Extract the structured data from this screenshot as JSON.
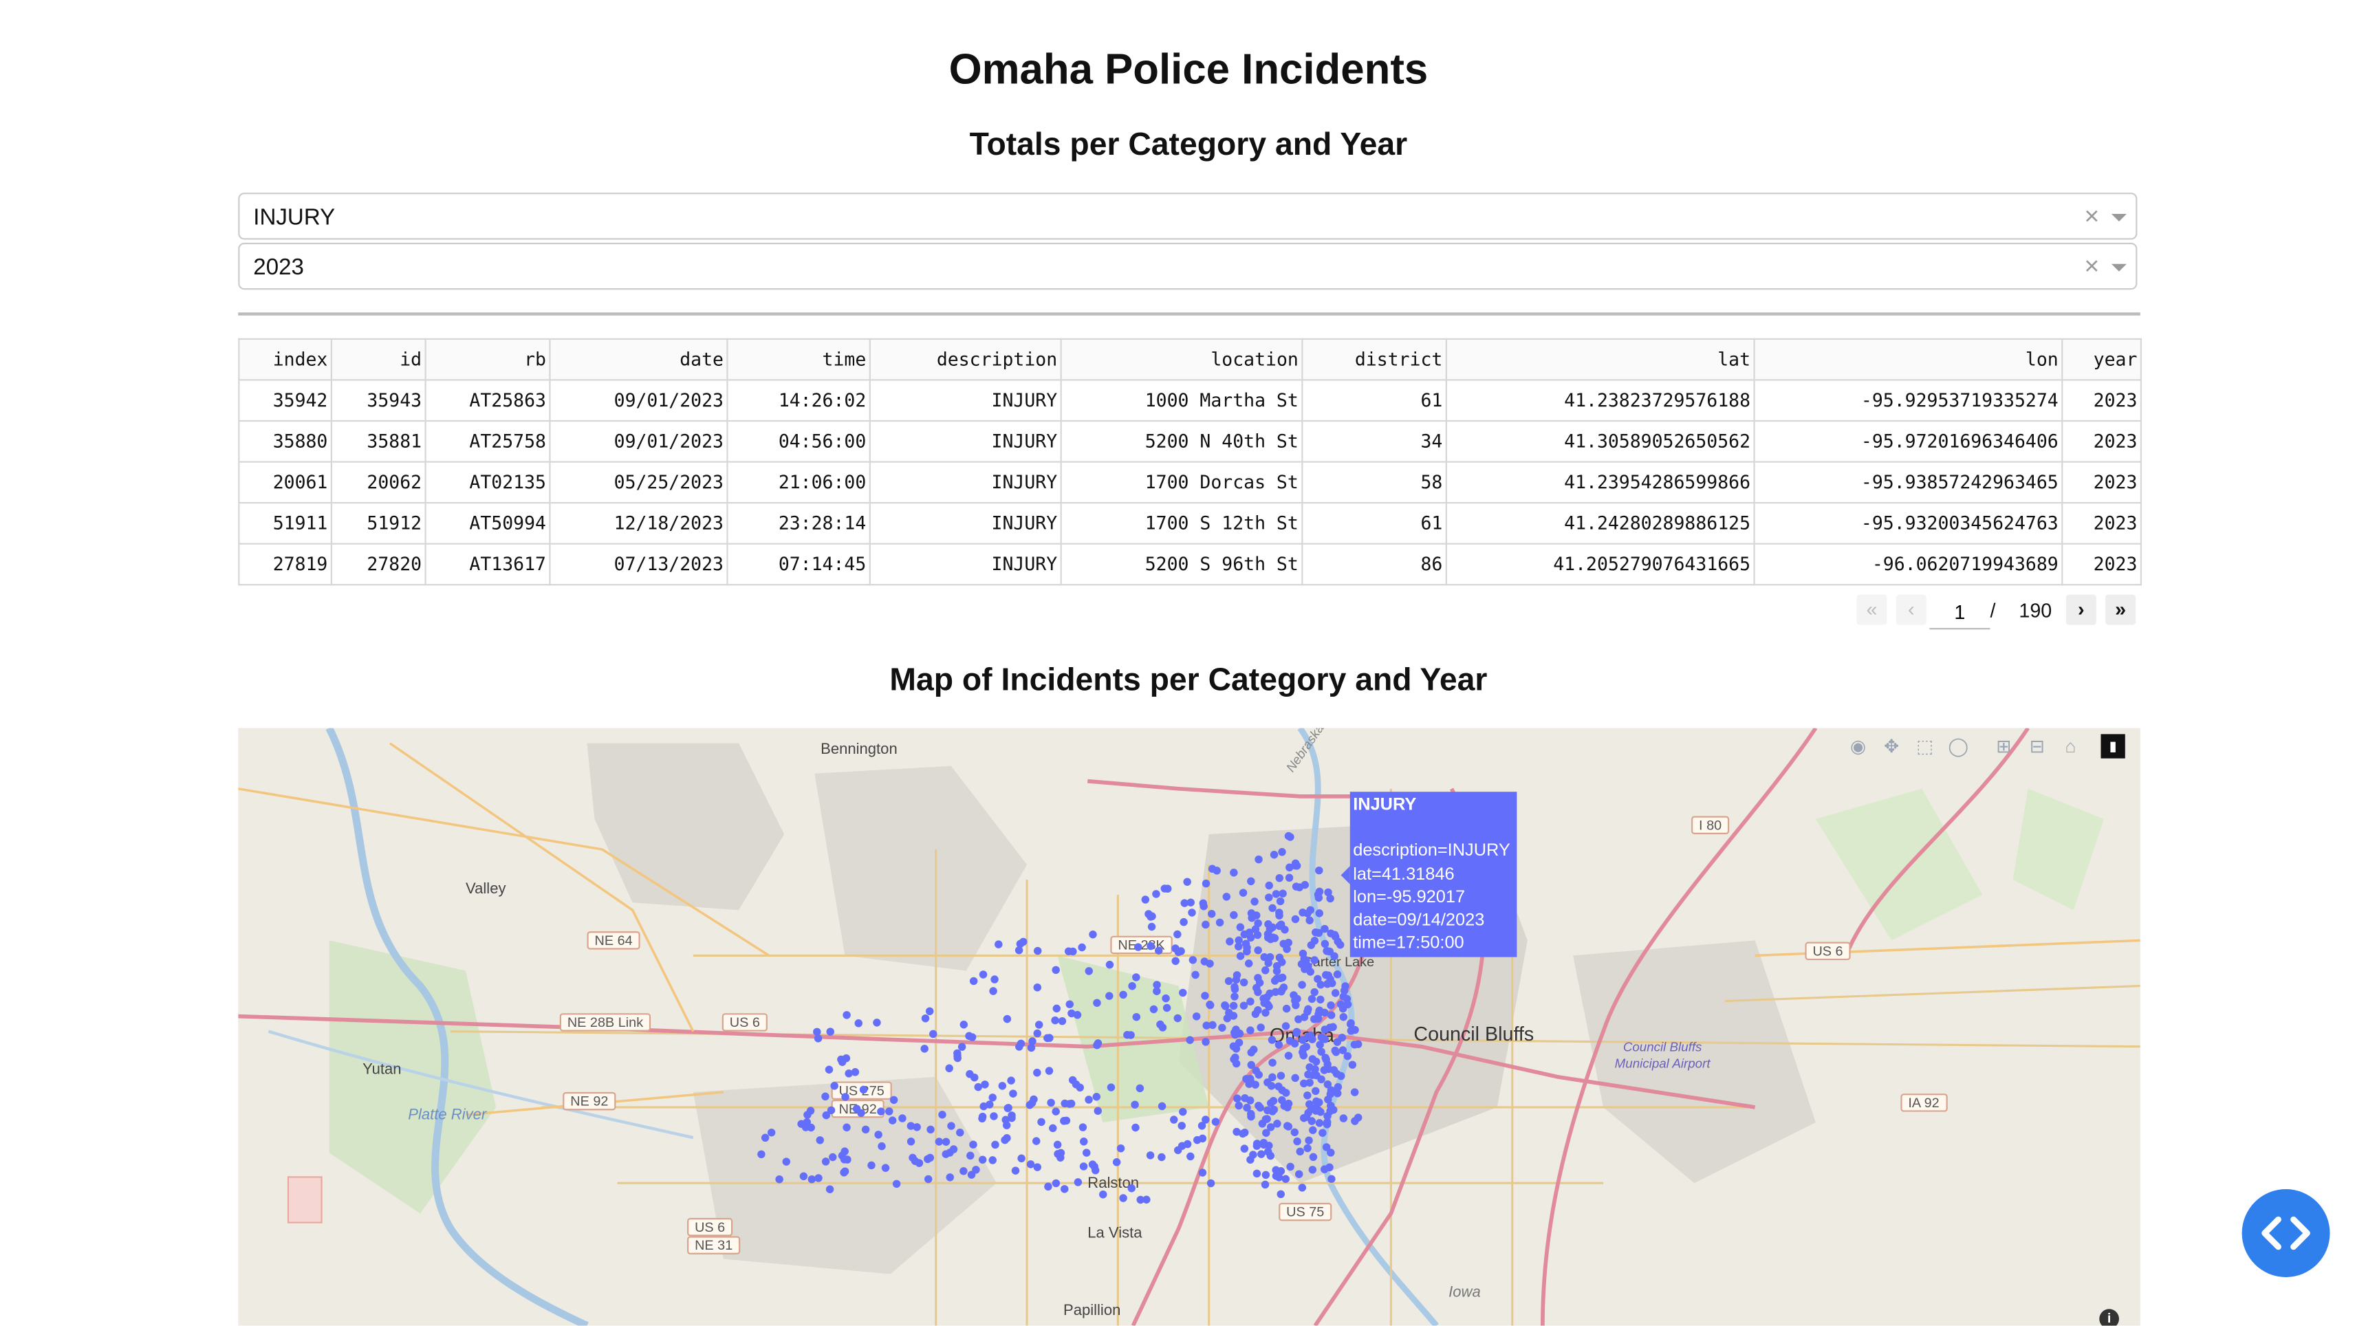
{
  "header": {
    "title": "Omaha Police Incidents",
    "subtitle": "Totals per Category and Year",
    "map_title": "Map of Incidents per Category and Year"
  },
  "filters": {
    "category": "INJURY",
    "year": "2023",
    "clear_symbol": "×"
  },
  "table": {
    "columns": [
      "index",
      "id",
      "rb",
      "date",
      "time",
      "description",
      "location",
      "district",
      "lat",
      "lon",
      "year"
    ],
    "rows": [
      [
        "35942",
        "35943",
        "AT25863",
        "09/01/2023",
        "14:26:02",
        "INJURY",
        "1000 Martha St",
        "61",
        "41.23823729576188",
        "-95.92953719335274",
        "2023"
      ],
      [
        "35880",
        "35881",
        "AT25758",
        "09/01/2023",
        "04:56:00",
        "INJURY",
        "5200 N 40th St",
        "34",
        "41.30589052650562",
        "-95.97201696346406",
        "2023"
      ],
      [
        "20061",
        "20062",
        "AT02135",
        "05/25/2023",
        "21:06:00",
        "INJURY",
        "1700 Dorcas St",
        "58",
        "41.23954286599866",
        "-95.93857242963465",
        "2023"
      ],
      [
        "51911",
        "51912",
        "AT50994",
        "12/18/2023",
        "23:28:14",
        "INJURY",
        "1700 S 12th St",
        "61",
        "41.24280289886125",
        "-95.93200345624763",
        "2023"
      ],
      [
        "27819",
        "27820",
        "AT13617",
        "07/13/2023",
        "07:14:45",
        "INJURY",
        "5200 S 96th St",
        "86",
        "41.205279076431665",
        "-96.0620719943689",
        "2023"
      ]
    ]
  },
  "pagination": {
    "first": "«",
    "prev": "‹",
    "next": "›",
    "last": "»",
    "current": "1",
    "separator": "/",
    "total": "190"
  },
  "map": {
    "marker_color": "#636efa",
    "places": [
      "Bennington",
      "Valley",
      "Yutan",
      "Platte River",
      "Ralston",
      "La Vista",
      "Papillion",
      "Council Bluffs",
      "Council Bluffs Municipal Airport",
      "Carter Lake",
      "Omaha",
      "Iowa",
      "Nebraska"
    ],
    "routes": [
      "NE 64",
      "NE 28B Link",
      "US 6",
      "NE 92",
      "US 275",
      "NE 92",
      "I 80",
      "US 6",
      "IA 92",
      "US 6",
      "NE 31",
      "US 75",
      "NE 28K"
    ],
    "hover": {
      "title": "INJURY",
      "lines": [
        "description=INJURY",
        "lat=41.31846",
        "lon=-95.92017",
        "date=09/14/2023",
        "time=17:50:00"
      ]
    },
    "modebar": [
      "camera-icon",
      "pan-icon",
      "box-select-icon",
      "lasso-icon",
      "zoom-in-icon",
      "zoom-out-icon",
      "reset-icon",
      "plotly-logo-icon"
    ]
  }
}
